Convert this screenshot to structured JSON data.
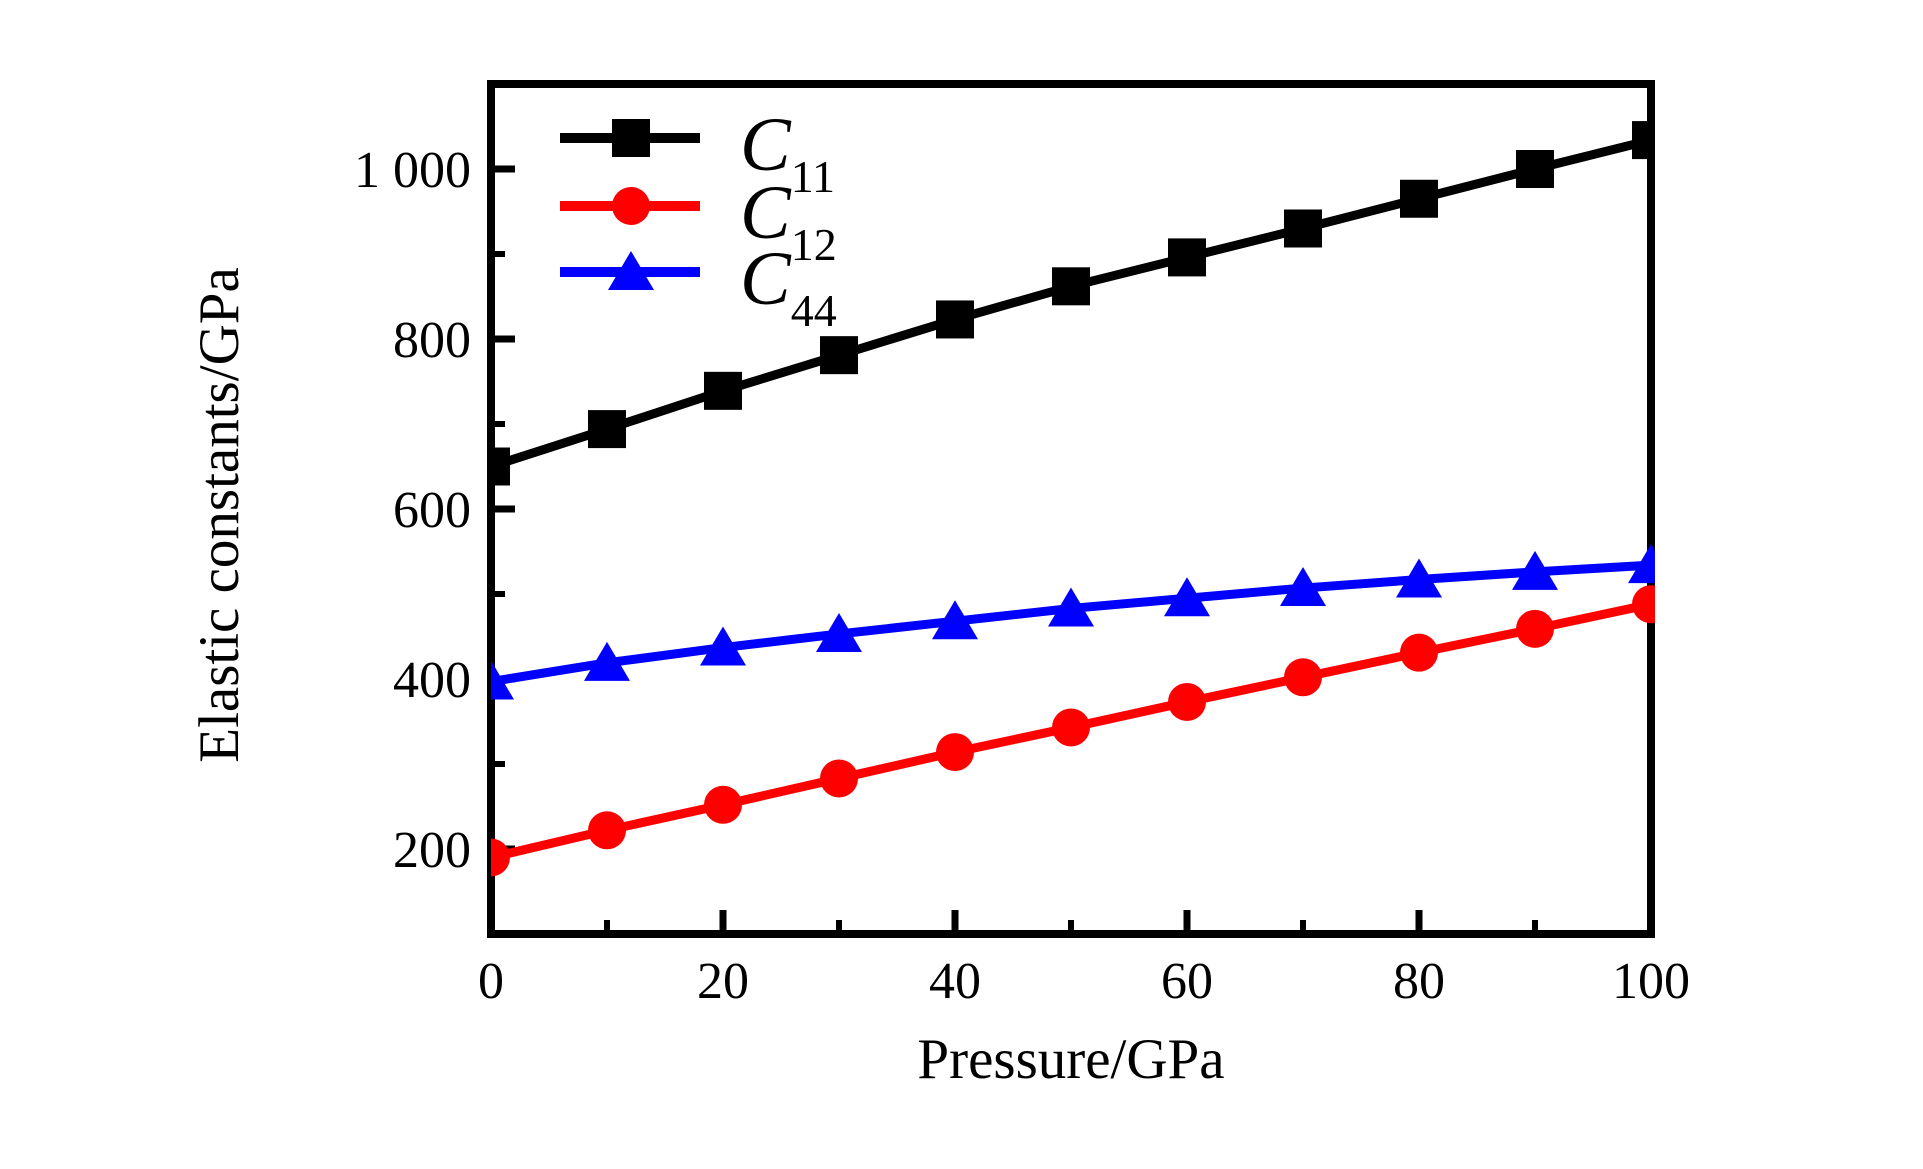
{
  "chart_data": {
    "type": "line",
    "title": "",
    "xlabel": "Pressure/GPa",
    "ylabel": "Elastic constants/GPa",
    "xlim": [
      0,
      100
    ],
    "ylim": [
      100,
      1100
    ],
    "grid": false,
    "legend_position": "upper-left",
    "x": [
      0,
      10,
      20,
      30,
      40,
      50,
      60,
      70,
      80,
      90,
      100
    ],
    "x_major_ticks": [
      0,
      20,
      40,
      60,
      80,
      100
    ],
    "x_minor_ticks": [
      10,
      30,
      50,
      70,
      90
    ],
    "x_tick_labels": [
      "0",
      "20",
      "40",
      "60",
      "80",
      "100"
    ],
    "y_major_ticks": [
      200,
      400,
      600,
      800,
      1000
    ],
    "y_minor_ticks": [
      300,
      500,
      700,
      900
    ],
    "y_tick_labels": [
      "200",
      "400",
      "600",
      "800",
      "1 000"
    ],
    "series": [
      {
        "name": "C11",
        "label_main": "C",
        "label_sub": "11",
        "color": "#000000",
        "marker": "square",
        "values": [
          650,
          694,
          739,
          781,
          823,
          862,
          896,
          930,
          965,
          1000,
          1034
        ]
      },
      {
        "name": "C12",
        "label_main": "C",
        "label_sub": "12",
        "color": "#ff0000",
        "marker": "circle",
        "values": [
          190,
          222,
          252,
          283,
          314,
          343,
          373,
          402,
          431,
          459,
          488
        ]
      },
      {
        "name": "C44",
        "label_main": "C",
        "label_sub": "44",
        "color": "#0000ff",
        "marker": "triangle",
        "values": [
          397,
          419,
          437,
          453,
          468,
          483,
          495,
          507,
          517,
          526,
          534
        ]
      }
    ]
  }
}
